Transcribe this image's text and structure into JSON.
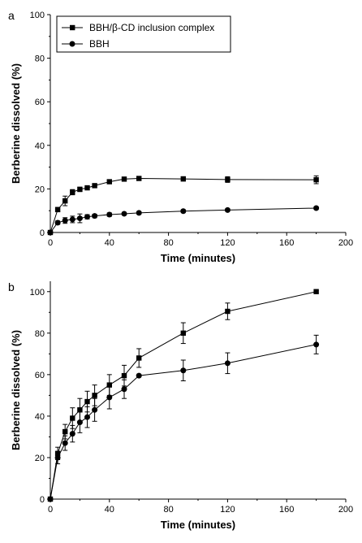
{
  "chart_data": [
    {
      "type": "line",
      "panel_label": "a",
      "xlabel": "Time (minutes)",
      "ylabel": "Berberine dissolved (%)",
      "xlim": [
        0,
        200
      ],
      "ylim": [
        0,
        100
      ],
      "xticks": [
        0,
        40,
        80,
        120,
        160,
        200
      ],
      "yticks": [
        0,
        20,
        40,
        60,
        80,
        100
      ],
      "grid": false,
      "legend_position": "top-left",
      "series": [
        {
          "name": "BBH/β-CD inclusion complex",
          "marker": "square",
          "x": [
            0,
            5,
            10,
            15,
            20,
            25,
            30,
            40,
            50,
            60,
            90,
            120,
            180
          ],
          "y": [
            0,
            10.5,
            14.5,
            18.5,
            19.8,
            20.5,
            21.5,
            23.3,
            24.5,
            24.8,
            24.6,
            24.3,
            24.2
          ],
          "err": [
            0,
            1.0,
            2.2,
            1.2,
            1.0,
            0.8,
            0.8,
            0.8,
            0.8,
            0.8,
            1.0,
            1.3,
            1.8
          ]
        },
        {
          "name": "BBH",
          "marker": "circle",
          "x": [
            0,
            5,
            10,
            15,
            20,
            25,
            30,
            40,
            50,
            60,
            90,
            120,
            180
          ],
          "y": [
            0,
            4.5,
            5.5,
            6.0,
            6.5,
            7.2,
            7.6,
            8.2,
            8.6,
            9.0,
            9.8,
            10.3,
            11.2
          ],
          "err": [
            0,
            0.8,
            1.3,
            1.5,
            2.0,
            1.0,
            0.8,
            0.8,
            0.6,
            0.6,
            0.6,
            0.6,
            0.6
          ]
        }
      ]
    },
    {
      "type": "line",
      "panel_label": "b",
      "xlabel": "Time (minutes)",
      "ylabel": "Berberine dissolved (%)",
      "xlim": [
        0,
        200
      ],
      "ylim": [
        0,
        105
      ],
      "xticks": [
        0,
        40,
        80,
        120,
        160,
        200
      ],
      "yticks": [
        0,
        20,
        40,
        60,
        80,
        100
      ],
      "grid": false,
      "series": [
        {
          "name": "BBH/β-CD inclusion complex",
          "marker": "square",
          "x": [
            0,
            5,
            10,
            15,
            20,
            25,
            30,
            40,
            50,
            60,
            90,
            120,
            180
          ],
          "y": [
            0,
            22,
            32.5,
            39,
            43,
            47,
            50,
            55,
            59.5,
            68,
            80,
            90.5,
            100
          ],
          "err": [
            0,
            3,
            3.5,
            5,
            5.5,
            5,
            5,
            5,
            5,
            4.5,
            5,
            4,
            0.5
          ]
        },
        {
          "name": "BBH",
          "marker": "circle",
          "x": [
            0,
            5,
            10,
            15,
            20,
            25,
            30,
            40,
            50,
            60,
            90,
            120,
            180
          ],
          "y": [
            0,
            20,
            27,
            31.5,
            37,
            39.5,
            43,
            49,
            53,
            59.5,
            62,
            65.5,
            74.5
          ],
          "err": [
            0,
            3,
            3.5,
            4,
            5,
            5,
            5.5,
            5.5,
            4.5,
            0.5,
            5,
            5,
            4.5
          ]
        }
      ]
    }
  ]
}
